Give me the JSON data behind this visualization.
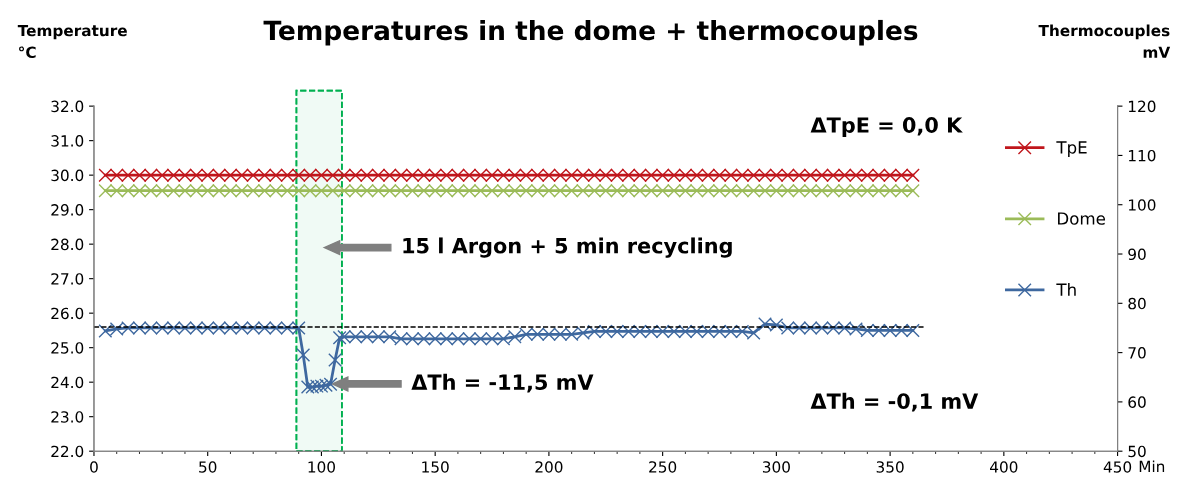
{
  "chart_data": {
    "type": "line",
    "title": "Temperatures in the dome + thermocouples",
    "xlabel": "Min",
    "ylabel": "Temperature\n°C",
    "y2label": "Thermocouples\nmV",
    "x": [
      5,
      10,
      15,
      20,
      25,
      30,
      35,
      40,
      45,
      50,
      55,
      60,
      65,
      70,
      75,
      80,
      85,
      90,
      95,
      100,
      105,
      110,
      115,
      120,
      125,
      130,
      135,
      140,
      145,
      150,
      155,
      160,
      165,
      170,
      175,
      180,
      185,
      190,
      195,
      200,
      205,
      210,
      215,
      220,
      225,
      230,
      235,
      240,
      245,
      250,
      255,
      260,
      265,
      270,
      275,
      280,
      285,
      290,
      295,
      300,
      305,
      310,
      315,
      320,
      325,
      330,
      335,
      340,
      345,
      350,
      355,
      360
    ],
    "series": [
      {
        "name": "TpE",
        "color": "#c0161c",
        "values": [
          30,
          30,
          30,
          30,
          30,
          30,
          30,
          30,
          30,
          30,
          30,
          30,
          30,
          30,
          30,
          30,
          30,
          30,
          30,
          30,
          30,
          30,
          30,
          30,
          30,
          30,
          30,
          30,
          30,
          30,
          30,
          30,
          30,
          30,
          30,
          30,
          30,
          30,
          30,
          30,
          30,
          30,
          30,
          30,
          30,
          30,
          30,
          30,
          30,
          30,
          30,
          30,
          30,
          30,
          30,
          30,
          30,
          30,
          30,
          30,
          30,
          30,
          30,
          30,
          30,
          30,
          30,
          30,
          30,
          30,
          30,
          30
        ]
      },
      {
        "name": "Dome",
        "color": "#9bbb59",
        "values": [
          29.55,
          29.55,
          29.55,
          29.55,
          29.55,
          29.55,
          29.55,
          29.55,
          29.55,
          29.55,
          29.55,
          29.55,
          29.55,
          29.55,
          29.55,
          29.55,
          29.55,
          29.55,
          29.55,
          29.55,
          29.55,
          29.55,
          29.55,
          29.55,
          29.55,
          29.55,
          29.55,
          29.55,
          29.55,
          29.55,
          29.55,
          29.55,
          29.55,
          29.55,
          29.55,
          29.55,
          29.55,
          29.55,
          29.55,
          29.55,
          29.55,
          29.55,
          29.55,
          29.55,
          29.55,
          29.55,
          29.55,
          29.55,
          29.55,
          29.55,
          29.55,
          29.55,
          29.55,
          29.55,
          29.55,
          29.55,
          29.55,
          29.55,
          29.55,
          29.55,
          29.55,
          29.55,
          29.55,
          29.55,
          29.55,
          29.55,
          29.55,
          29.55,
          29.55,
          29.55,
          29.55,
          29.55
        ]
      },
      {
        "name": "Th",
        "color": "#3e689f",
        "axis": "y2",
        "x": [
          5,
          10,
          15,
          20,
          25,
          30,
          35,
          40,
          45,
          50,
          55,
          60,
          65,
          70,
          75,
          80,
          85,
          90,
          92,
          94,
          96,
          98,
          100,
          102,
          104,
          106,
          108,
          110,
          115,
          120,
          125,
          130,
          135,
          140,
          145,
          150,
          155,
          160,
          165,
          170,
          175,
          180,
          185,
          190,
          195,
          200,
          205,
          210,
          215,
          220,
          225,
          230,
          235,
          240,
          245,
          250,
          255,
          260,
          265,
          270,
          275,
          280,
          285,
          290,
          295,
          300,
          305,
          310,
          315,
          320,
          325,
          330,
          335,
          340,
          345,
          350,
          355,
          360
        ],
        "values": [
          74.4,
          74.8,
          75,
          75,
          75,
          75,
          75,
          75,
          75,
          75,
          75,
          75,
          75,
          75,
          75,
          75,
          75,
          75,
          69.5,
          63,
          63,
          63.2,
          63.2,
          63.4,
          63.6,
          68.5,
          73,
          73.2,
          73.2,
          73.2,
          73.2,
          73.2,
          72.8,
          72.8,
          72.8,
          72.8,
          72.8,
          72.8,
          72.8,
          72.8,
          72.8,
          72.8,
          73.2,
          73.7,
          73.7,
          73.7,
          73.7,
          73.7,
          74,
          74.3,
          74.3,
          74.3,
          74.3,
          74.3,
          74.3,
          74.3,
          74.3,
          74.3,
          74.3,
          74.3,
          74.3,
          74.3,
          74.3,
          74,
          75.8,
          75.6,
          75,
          75,
          75,
          75,
          75,
          75,
          74.8,
          74.5,
          74.5,
          74.5,
          74.5,
          74.5
        ]
      },
      {
        "type": "line",
        "axis": "y2",
        "color": "#000000",
        "line_style": "dashed",
        "marker": "none",
        "x": [
          0,
          365
        ],
        "values": [
          75.2,
          75.2
        ]
      }
    ],
    "xlim": [
      0,
      450
    ],
    "xticks": [
      0,
      50,
      100,
      150,
      200,
      250,
      300,
      350,
      400,
      450
    ],
    "ylim": [
      22,
      32
    ],
    "yticks": [
      {
        "value": 22,
        "label": "22.0"
      },
      {
        "value": 23,
        "label": "23.0"
      },
      {
        "value": 24,
        "label": "24.0"
      },
      {
        "value": 25,
        "label": "25.0"
      },
      {
        "value": 26,
        "label": "26.0"
      },
      {
        "value": 27,
        "label": "27.0"
      },
      {
        "value": 28,
        "label": "28.0"
      },
      {
        "value": 29,
        "label": "29.0"
      },
      {
        "value": 30,
        "label": "30.0"
      },
      {
        "value": 31,
        "label": "31.0"
      },
      {
        "value": 32,
        "label": "32.0"
      }
    ],
    "y2lim": [
      50,
      120
    ],
    "y2ticks": [
      50,
      60,
      70,
      80,
      90,
      100,
      110,
      120
    ],
    "bands": [
      {
        "axis": "x",
        "from": 89,
        "to": 109,
        "color": "#00b050"
      }
    ],
    "annotations": [
      "15 l Argon + 5 min recycling",
      "ΔTh = -11,5 mV",
      "ΔTpE = 0,0 K",
      "ΔTh = -0,1 mV"
    ],
    "marker": "cross",
    "line_style": "solid",
    "grid": false,
    "legend": "right"
  }
}
